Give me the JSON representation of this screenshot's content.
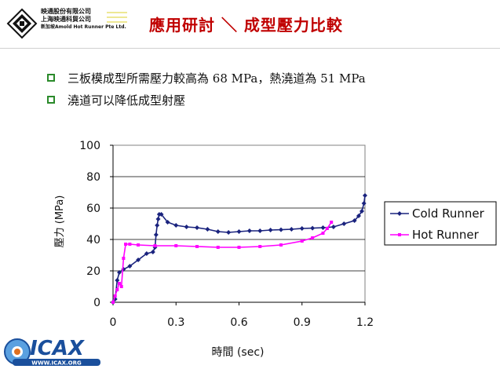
{
  "header": {
    "company_lines": [
      "映通股份有限公司",
      "上海映通科貿公司",
      "新加坡Amold Hot Runner Pte Ltd."
    ],
    "title": "應用研討 ＼ 成型壓力比較"
  },
  "bullets": [
    "三板模成型所需壓力較高為 68 MPa，熱澆道為 51 MPa",
    "澆道可以降低成型射壓"
  ],
  "footer_logo": {
    "text": "ICAX",
    "url_text": "WWW.ICAX.ORG"
  },
  "chart_data": {
    "type": "line",
    "title": "",
    "xlabel": "時間 (sec)",
    "ylabel": "壓力 (MPa)",
    "xlim": [
      0,
      1.2
    ],
    "ylim": [
      0,
      100
    ],
    "xticks": [
      0,
      0.3,
      0.6,
      0.9,
      1.2
    ],
    "xtick_labels": [
      "0",
      "0.3",
      "0.6",
      "0.9",
      "1.2"
    ],
    "yticks": [
      0,
      20,
      40,
      60,
      80,
      100
    ],
    "ytick_labels": [
      "0",
      "20",
      "40",
      "60",
      "80",
      "100"
    ],
    "grid": "horizontal",
    "legend": "right",
    "series": [
      {
        "name": "Cold Runner",
        "color": "#1a237e",
        "marker": "diamond",
        "x": [
          0.0,
          0.01,
          0.02,
          0.03,
          0.05,
          0.08,
          0.12,
          0.16,
          0.19,
          0.2,
          0.205,
          0.21,
          0.215,
          0.22,
          0.23,
          0.26,
          0.3,
          0.35,
          0.4,
          0.45,
          0.5,
          0.55,
          0.6,
          0.65,
          0.7,
          0.75,
          0.8,
          0.85,
          0.9,
          0.95,
          1.0,
          1.05,
          1.1,
          1.15,
          1.17,
          1.185,
          1.195,
          1.2
        ],
        "y": [
          0,
          2,
          14,
          19,
          21,
          23,
          27,
          31,
          32,
          35,
          43,
          49,
          53,
          56,
          56,
          51,
          49,
          48,
          47.5,
          46.5,
          45,
          44.5,
          45,
          45.5,
          45.5,
          46,
          46.2,
          46.5,
          47,
          47.2,
          47.5,
          48,
          50,
          52,
          55,
          58,
          63,
          68
        ]
      },
      {
        "name": "Hot Runner",
        "color": "#ff00ff",
        "marker": "square",
        "x": [
          0.0,
          0.01,
          0.02,
          0.03,
          0.04,
          0.05,
          0.06,
          0.08,
          0.12,
          0.2,
          0.3,
          0.4,
          0.5,
          0.6,
          0.7,
          0.8,
          0.9,
          0.95,
          1.0,
          1.02,
          1.04
        ],
        "y": [
          0,
          4,
          8,
          12,
          10,
          28,
          37,
          37,
          36.5,
          36,
          36,
          35.5,
          35,
          35,
          35.5,
          36.5,
          39,
          41,
          44,
          47,
          51
        ]
      }
    ]
  }
}
